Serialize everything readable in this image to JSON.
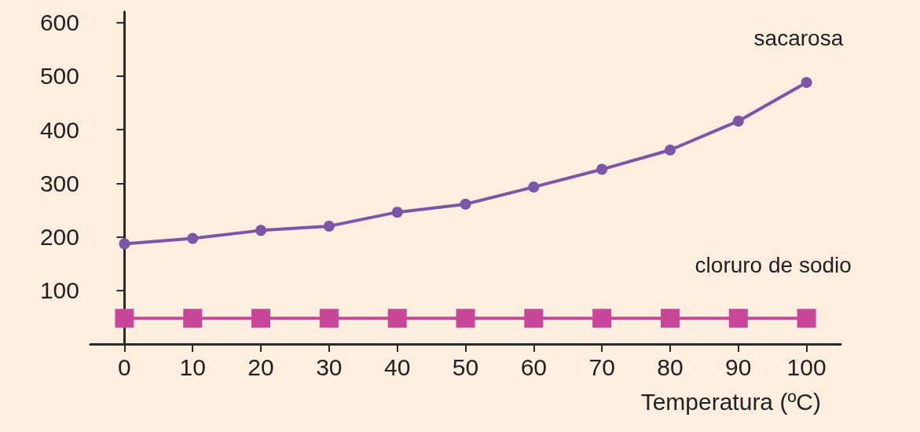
{
  "chart_data": {
    "type": "line",
    "xlabel": "Temperatura (ºC)",
    "x": [
      0,
      10,
      20,
      30,
      40,
      50,
      60,
      70,
      80,
      90,
      100
    ],
    "series": [
      {
        "name": "sacarosa",
        "color": "#7b55a6",
        "marker": "circle",
        "values": [
          187,
          197,
          212,
          220,
          246,
          261,
          293,
          326,
          362,
          416,
          488
        ]
      },
      {
        "name": "cloruro de sodio",
        "color": "#c8479a",
        "marker": "square",
        "values": [
          48,
          48,
          48,
          48,
          48,
          48,
          48,
          48,
          48,
          48,
          48
        ]
      }
    ],
    "xlim": [
      -5,
      105
    ],
    "xticks": [
      0,
      10,
      20,
      30,
      40,
      50,
      60,
      70,
      80,
      90,
      100
    ],
    "ylim": [
      0,
      620
    ],
    "yticks": [
      100,
      200,
      300,
      400,
      500,
      600
    ],
    "grid": false,
    "legend": false
  }
}
